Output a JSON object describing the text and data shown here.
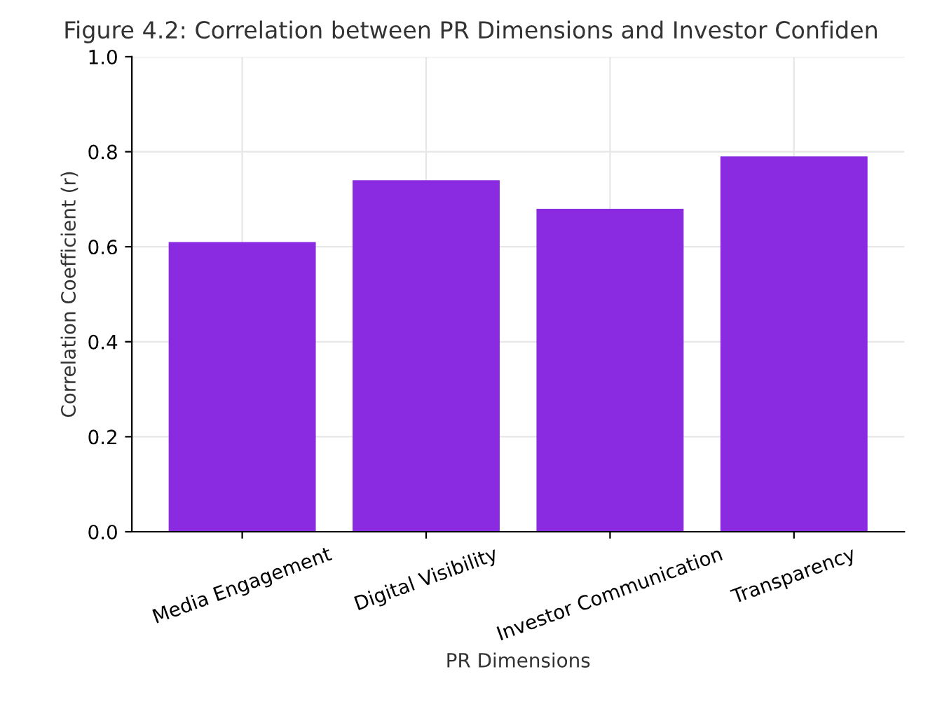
{
  "chart_data": {
    "type": "bar",
    "title": "Figure 4.2: Correlation between PR Dimensions and Investor Confiden",
    "xlabel": "PR Dimensions",
    "ylabel": "Correlation Coefficient (r)",
    "categories": [
      "Media Engagement",
      "Digital Visibility",
      "Investor Communication",
      "Transparency"
    ],
    "values": [
      0.61,
      0.74,
      0.68,
      0.79
    ],
    "color": "#8a2be2",
    "ylim": [
      0,
      1.0
    ],
    "yticks": [
      {
        "value": 0,
        "label": "0.0"
      },
      0.2,
      0.4,
      0.6,
      0.8,
      {
        "value": 1.0,
        "label": "1.0"
      }
    ],
    "grid": true
  }
}
